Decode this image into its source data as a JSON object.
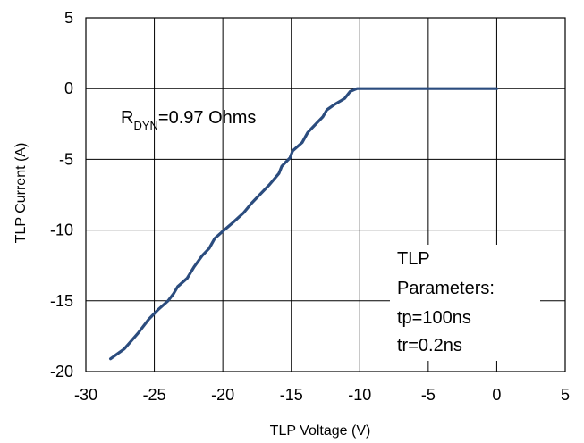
{
  "chart_data": {
    "type": "line",
    "xlabel": "TLP Voltage (V)",
    "ylabel": "TLP Current (A)",
    "xlim": [
      -30,
      5
    ],
    "ylim": [
      -20,
      5
    ],
    "x_ticks": [
      "-30",
      "-25",
      "-20",
      "-15",
      "-10",
      "-5",
      "0",
      "5"
    ],
    "y_ticks": [
      "5",
      "0",
      "-5",
      "-10",
      "-15",
      "-20"
    ],
    "grid": true,
    "series": [
      {
        "color": "#2b4c7e",
        "x": [
          -28.2,
          -27.2,
          -26.2,
          -25.4,
          -24.7,
          -24.0,
          -23.6,
          -23.3,
          -22.6,
          -22.1,
          -21.5,
          -21.0,
          -20.6,
          -19.9,
          -19.3,
          -18.5,
          -17.9,
          -17.2,
          -16.6,
          -15.9,
          -15.7,
          -15.1,
          -14.9,
          -14.2,
          -13.8,
          -13.3,
          -12.7,
          -12.4,
          -11.8,
          -11.1,
          -10.7,
          -10.2,
          -9.6,
          -9.2,
          -8.7,
          -8.4,
          -6.0,
          -3.0,
          0.0
        ],
        "y": [
          -19.1,
          -18.4,
          -17.3,
          -16.3,
          -15.6,
          -15.0,
          -14.5,
          -14.0,
          -13.4,
          -12.6,
          -11.8,
          -11.3,
          -10.6,
          -10.0,
          -9.5,
          -8.8,
          -8.1,
          -7.4,
          -6.8,
          -6.0,
          -5.5,
          -4.9,
          -4.4,
          -3.8,
          -3.1,
          -2.6,
          -2.0,
          -1.5,
          -1.1,
          -0.7,
          -0.2,
          0.0,
          0.0,
          0.0,
          0.0,
          0.0,
          0.0,
          0.0,
          0.0
        ]
      }
    ]
  },
  "annotations": {
    "rdyn_prefix": "R",
    "rdyn_sub": "DYN",
    "rdyn_value": "=0.97 Ohms",
    "params_lines": [
      "TLP",
      "Parameters:",
      "tp=100ns",
      "tr=0.2ns"
    ]
  }
}
